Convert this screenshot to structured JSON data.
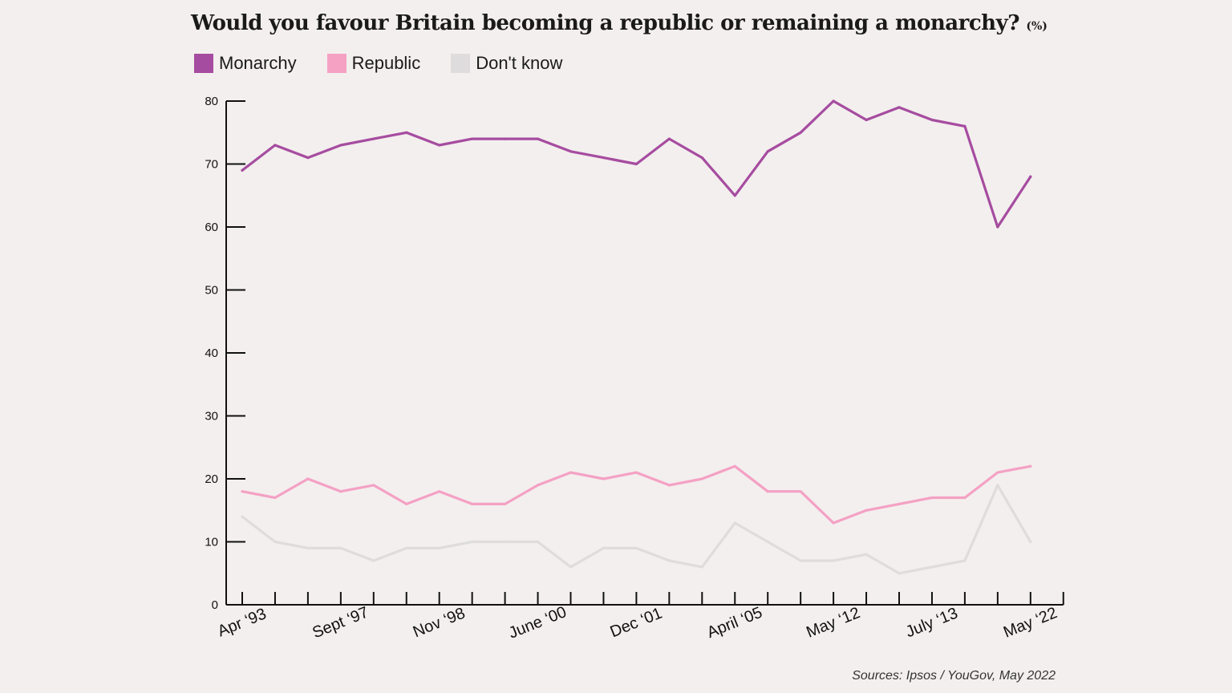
{
  "chart_data": {
    "type": "line",
    "title": "Would you favour Britain becoming a republic or remaining a monarchy?",
    "title_unit": "(%)",
    "xlabel": "",
    "ylabel": "",
    "ylim": [
      0,
      80
    ],
    "yticks": [
      0,
      10,
      20,
      30,
      40,
      50,
      60,
      70,
      80
    ],
    "x_tick_labels": [
      "Apr ‘93",
      "Sept ‘97",
      "Nov ‘98",
      "June ‘00",
      "Dec ‘01",
      "April ‘05",
      "May ‘12",
      "July ‘13",
      "May ‘22"
    ],
    "x_tick_label_positions": [
      0,
      3,
      6,
      9,
      12,
      15,
      18,
      21,
      24
    ],
    "n_ticks": 26,
    "series": [
      {
        "name": "Monarchy",
        "color": "#a64ca0",
        "values": [
          69,
          73,
          71,
          73,
          74,
          75,
          73,
          74,
          74,
          74,
          72,
          71,
          70,
          74,
          71,
          65,
          72,
          75,
          80,
          77,
          79,
          77,
          76,
          60,
          68
        ]
      },
      {
        "name": "Republic",
        "color": "#f4a1c4",
        "values": [
          18,
          17,
          20,
          18,
          19,
          16,
          18,
          16,
          16,
          19,
          21,
          20,
          21,
          19,
          20,
          22,
          18,
          18,
          13,
          15,
          16,
          17,
          17,
          21,
          22
        ]
      },
      {
        "name": "Don't know",
        "color": "#dedcdc",
        "values": [
          14,
          10,
          9,
          9,
          7,
          9,
          9,
          10,
          10,
          10,
          6,
          9,
          9,
          7,
          6,
          13,
          10,
          7,
          7,
          8,
          5,
          6,
          7,
          19,
          10
        ]
      }
    ],
    "legend_position": "top-left",
    "source": "Sources: Ipsos / YouGov, May 2022"
  }
}
